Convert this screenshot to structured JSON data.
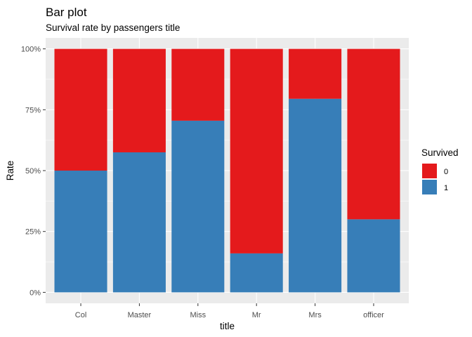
{
  "chart_data": {
    "type": "bar",
    "stacked": true,
    "title": "Bar plot",
    "subtitle": "Survival rate by passengers title",
    "xlabel": "title",
    "ylabel": "Rate",
    "categories": [
      "Col",
      "Master",
      "Miss",
      "Mr",
      "Mrs",
      "officer"
    ],
    "series": [
      {
        "name": "1",
        "color": "#377EB8",
        "values": [
          0.5,
          0.575,
          0.705,
          0.16,
          0.795,
          0.3
        ]
      },
      {
        "name": "0",
        "color": "#E41A1C",
        "values": [
          0.5,
          0.425,
          0.295,
          0.84,
          0.205,
          0.7
        ]
      }
    ],
    "ylim": [
      0,
      1
    ],
    "yticks": [
      {
        "value": 0,
        "label": "0%"
      },
      {
        "value": 0.25,
        "label": "25%"
      },
      {
        "value": 0.5,
        "label": "50%"
      },
      {
        "value": 0.75,
        "label": "75%"
      },
      {
        "value": 1,
        "label": "100%"
      }
    ],
    "grid": true,
    "legend": {
      "title": "Survived",
      "placement": "right",
      "entries": [
        {
          "label": "0",
          "color": "#E41A1C"
        },
        {
          "label": "1",
          "color": "#377EB8"
        }
      ]
    },
    "panel_background": "#EBEBEB",
    "grid_color": "#FFFFFF"
  }
}
